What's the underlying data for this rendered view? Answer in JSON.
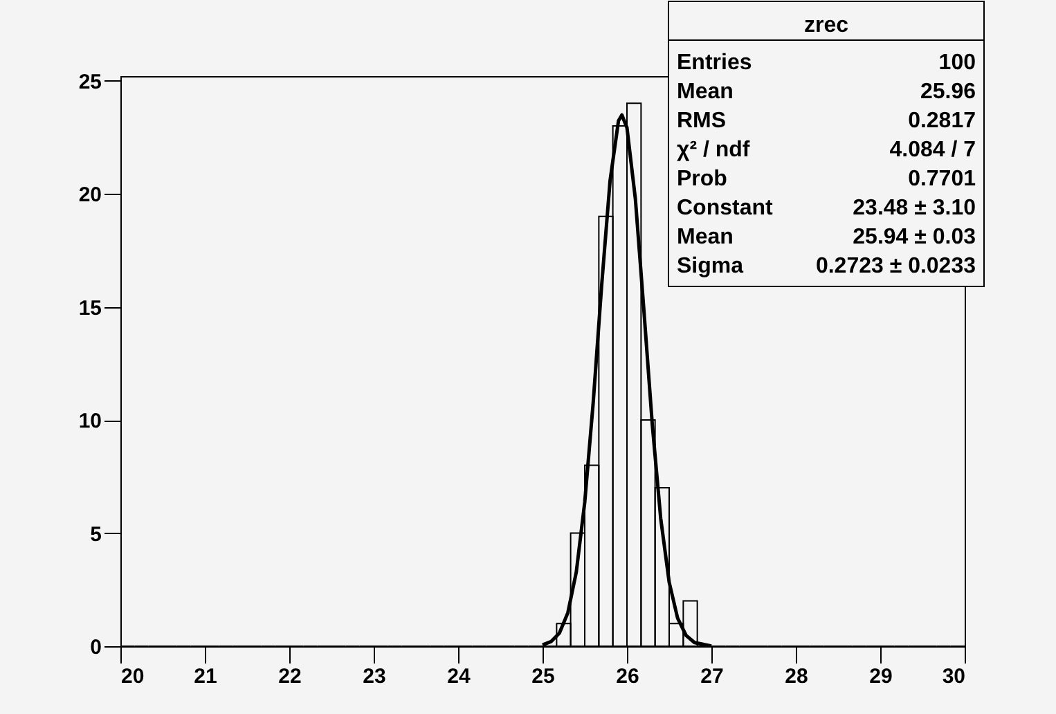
{
  "chart_data": {
    "type": "histogram",
    "bins": [
      20.0,
      20.167,
      20.333,
      20.5,
      20.667,
      20.833,
      21.0,
      21.167,
      21.333,
      21.5,
      21.667,
      21.833,
      22.0,
      22.167,
      22.333,
      22.5,
      22.667,
      22.833,
      23.0,
      23.167,
      23.333,
      23.5,
      23.667,
      23.833,
      24.0,
      24.167,
      24.333,
      24.5,
      24.667,
      24.833,
      25.0,
      25.167,
      25.333,
      25.5,
      25.667,
      25.833,
      26.0,
      26.167,
      26.333,
      26.5,
      26.667,
      26.833,
      27.0,
      27.167,
      27.333,
      27.5,
      27.667,
      27.833,
      28.0,
      28.167,
      28.333,
      28.5,
      28.667,
      28.833,
      29.0,
      29.167,
      29.333,
      29.5,
      29.667,
      29.833,
      30.0
    ],
    "values": [
      0,
      0,
      0,
      0,
      0,
      0,
      0,
      0,
      0,
      0,
      0,
      0,
      0,
      0,
      0,
      0,
      0,
      0,
      0,
      0,
      0,
      0,
      0,
      0,
      0,
      0,
      0,
      0,
      0,
      0,
      0,
      1,
      5,
      8,
      19,
      23,
      24,
      10,
      7,
      1,
      2,
      0,
      0,
      0,
      0,
      0,
      0,
      0,
      0,
      0,
      0,
      0,
      0,
      0,
      0,
      0,
      0,
      0,
      0,
      0
    ],
    "color": "#000000",
    "series": [
      {
        "type": "line",
        "color": "#000000",
        "x": [
          25.0,
          25.1,
          25.2,
          25.3,
          25.4,
          25.5,
          25.6,
          25.7,
          25.8,
          25.9,
          25.94,
          26.0,
          26.1,
          26.2,
          26.3,
          26.4,
          26.5,
          26.6,
          26.7,
          26.8,
          27.0
        ],
        "values": [
          0.06,
          0.2,
          0.58,
          1.48,
          3.28,
          6.36,
          10.76,
          15.93,
          20.58,
          23.23,
          23.48,
          22.92,
          19.76,
          14.88,
          9.8,
          5.64,
          2.83,
          1.24,
          0.48,
          0.16,
          0.01
        ]
      }
    ],
    "xlim": [
      20,
      30
    ],
    "xticks": [
      20,
      21,
      22,
      23,
      24,
      25,
      26,
      27,
      28,
      29,
      30
    ],
    "ylim": [
      0,
      25.2
    ],
    "yticks": [
      0,
      5,
      10,
      15,
      20,
      25
    ],
    "grid": false,
    "annotations": [
      "zrec",
      "Entries",
      "100",
      "Mean",
      "25.96",
      "RMS",
      "0.2817",
      "χ² / ndf",
      "4.084 / 7",
      "Prob",
      "0.7701",
      "Constant",
      "23.48 ± 3.10",
      "Mean",
      "25.94 ± 0.03",
      "Sigma",
      "0.2723 ± 0.0233"
    ]
  }
}
